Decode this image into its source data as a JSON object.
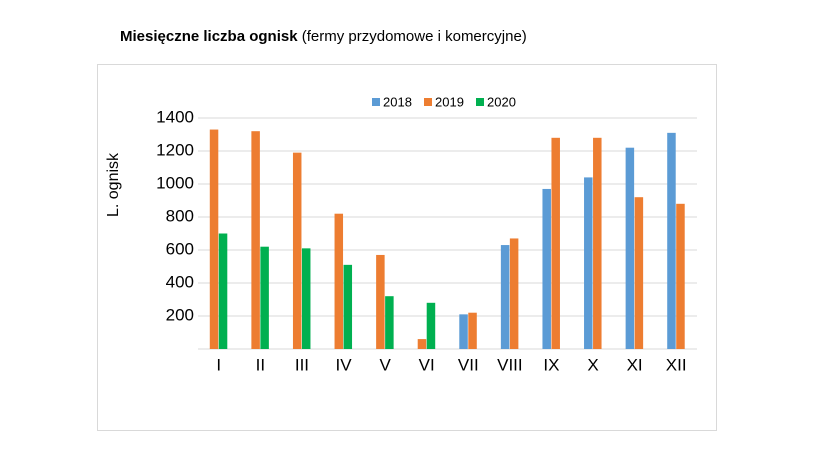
{
  "chart_data": {
    "type": "bar",
    "title": "Miesięczne liczba ognisk",
    "subtitle": "(fermy przydomowe i komercyjne)",
    "y_label": "L.  ognisk",
    "categories": [
      "I",
      "II",
      "III",
      "IV",
      "V",
      "VI",
      "VII",
      "VIII",
      "IX",
      "X",
      "XI",
      "XII"
    ],
    "series": [
      {
        "name": "2018",
        "color": "#5b9bd5",
        "values": [
          null,
          null,
          null,
          null,
          null,
          null,
          210,
          630,
          970,
          1040,
          1220,
          1310
        ]
      },
      {
        "name": "2019",
        "color": "#ed7d31",
        "values": [
          1330,
          1320,
          1190,
          820,
          570,
          60,
          220,
          670,
          1280,
          1280,
          920,
          880
        ]
      },
      {
        "name": "2020",
        "color": "#00b050",
        "values": [
          700,
          620,
          610,
          510,
          320,
          280,
          null,
          null,
          null,
          null,
          null,
          null
        ]
      }
    ],
    "ylim": [
      0,
      1400
    ],
    "yticks": [
      200,
      400,
      600,
      800,
      1000,
      1200,
      1400
    ],
    "grid": true,
    "legend": "top"
  }
}
